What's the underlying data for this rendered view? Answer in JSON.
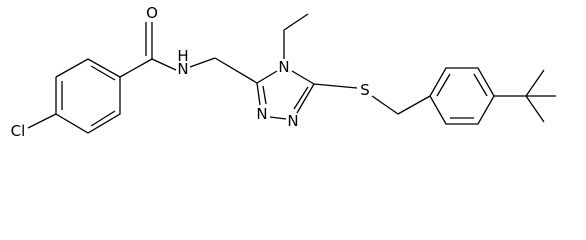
{
  "atoms": {
    "oxygen": "O",
    "amide_n": "N",
    "amide_h": "H",
    "ring_n4": "N",
    "ring_n1": "N",
    "ring_n2": "N",
    "sulfur": "S",
    "chlorine": "Cl"
  }
}
